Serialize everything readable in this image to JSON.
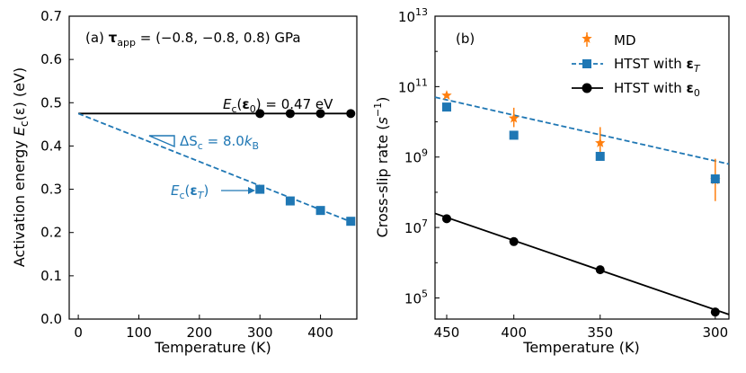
{
  "chart_data": [
    {
      "type": "line",
      "panel_label": "(a)",
      "title": "(a) τ_app = (−0.8, −0.8, 0.8) GPa",
      "title_parts": {
        "panel": "(a) ",
        "tau": "τ",
        "sub": "app",
        "rest": " = (−0.8, −0.8, 0.8) GPa"
      },
      "xlabel": "Temperature (K)",
      "ylabel": "Activation energy E_c(ε) (eV)",
      "ylabel_parts": {
        "pre": "Activation energy ",
        "E": "E",
        "sub": "c",
        "post": "(ε) (eV)"
      },
      "xlim": [
        -15,
        460
      ],
      "ylim": [
        0,
        0.7
      ],
      "xticks": [
        0,
        100,
        200,
        300,
        400
      ],
      "xtick_labels": [
        "0",
        "100",
        "200",
        "300",
        "400"
      ],
      "yticks": [
        0.0,
        0.1,
        0.2,
        0.3,
        0.4,
        0.5,
        0.6,
        0.7
      ],
      "ytick_labels": [
        "0.0",
        "0.1",
        "0.2",
        "0.3",
        "0.4",
        "0.5",
        "0.6",
        "0.7"
      ],
      "series": [
        {
          "name": "E_c(ε_0)",
          "color": "#000000",
          "style": "solid",
          "marker": "circle",
          "line_x": [
            0,
            450
          ],
          "line_y": [
            0.475,
            0.475
          ],
          "x": [
            300,
            350,
            400,
            450
          ],
          "y": [
            0.475,
            0.475,
            0.475,
            0.475
          ]
        },
        {
          "name": "E_c(ε_T)",
          "color": "#1f77b4",
          "style": "dashed",
          "marker": "square",
          "line_x": [
            0,
            450
          ],
          "line_y": [
            0.475,
            0.225
          ],
          "x": [
            300,
            350,
            400,
            450
          ],
          "y": [
            0.3,
            0.273,
            0.251,
            0.226
          ]
        }
      ],
      "annotations": {
        "e0_label": "E_c(ε_0) = 0.47 eV",
        "e0_parts": {
          "E": "E",
          "sub": "c",
          "mid": "(",
          "eps": "ε",
          "epssub": "0",
          "post": ") = 0.47 eV"
        },
        "entropy_label": "ΔS_c = 8.0k_B",
        "entropy_parts": {
          "pre": "ΔS",
          "sub": "c",
          "mid": " = 8.0",
          "k": "k",
          "ksub": "B"
        },
        "eT_label": "E_c(ε_T)",
        "eT_parts": {
          "E": "E",
          "sub": "c",
          "mid": "(",
          "eps": "ε",
          "epssub": "T",
          "post": ")"
        }
      }
    },
    {
      "type": "line",
      "panel_label": "(b)",
      "xlabel": "Temperature (K)",
      "ylabel": "Cross-slip rate (s^-1)",
      "ylabel_parts": {
        "pre": "Cross-slip rate (",
        "s": "s",
        "sup": "−1",
        "post": ")"
      },
      "x_scale": "inverse temperature (1/T), reversed",
      "y_scale": "log",
      "xlim": [
        460,
        295
      ],
      "ylim_log10": [
        4.4,
        13
      ],
      "xticks": [
        450,
        400,
        350,
        300
      ],
      "xtick_labels": [
        "450",
        "400",
        "350",
        "300"
      ],
      "yticks_log10": [
        5,
        7,
        9,
        11,
        13
      ],
      "ytick_labels": [
        "10^5",
        "10^7",
        "10^9",
        "10^11",
        "10^13"
      ],
      "legend": {
        "position": "upper-right",
        "entries": [
          "MD",
          "HTST with ε_T",
          "HTST with ε_0"
        ],
        "entries_parts": [
          {
            "pre": "MD",
            "eps": "",
            "sub": ""
          },
          {
            "pre": "HTST with ",
            "eps": "ε",
            "sub": "T"
          },
          {
            "pre": "HTST with ",
            "eps": "ε",
            "sub": "0"
          }
        ]
      },
      "series": [
        {
          "name": "MD",
          "color": "#ff7f0e",
          "marker": "star",
          "errorbars": true,
          "x": [
            450,
            400,
            350,
            300
          ],
          "log10_y": [
            10.75,
            10.1,
            9.4,
            8.35
          ],
          "log10_err_lo": [
            0.0,
            0.25,
            0.45,
            0.6
          ],
          "log10_err_hi": [
            0.0,
            0.3,
            0.45,
            0.6
          ]
        },
        {
          "name": "HTST with ε_T",
          "color": "#1f77b4",
          "style": "dashed",
          "marker": "square",
          "line_x": [
            460,
            295
          ],
          "line_log10_y": [
            10.7,
            8.8
          ],
          "x": [
            450,
            400,
            350,
            300
          ],
          "log10_y": [
            10.42,
            9.62,
            9.02,
            8.38
          ]
        },
        {
          "name": "HTST with ε_0",
          "color": "#000000",
          "style": "solid",
          "marker": "circle",
          "line_x": [
            460,
            295
          ],
          "line_log10_y": [
            7.4,
            4.53
          ],
          "x": [
            450,
            400,
            350,
            300
          ],
          "log10_y": [
            7.25,
            6.6,
            5.8,
            4.6
          ]
        }
      ]
    }
  ]
}
